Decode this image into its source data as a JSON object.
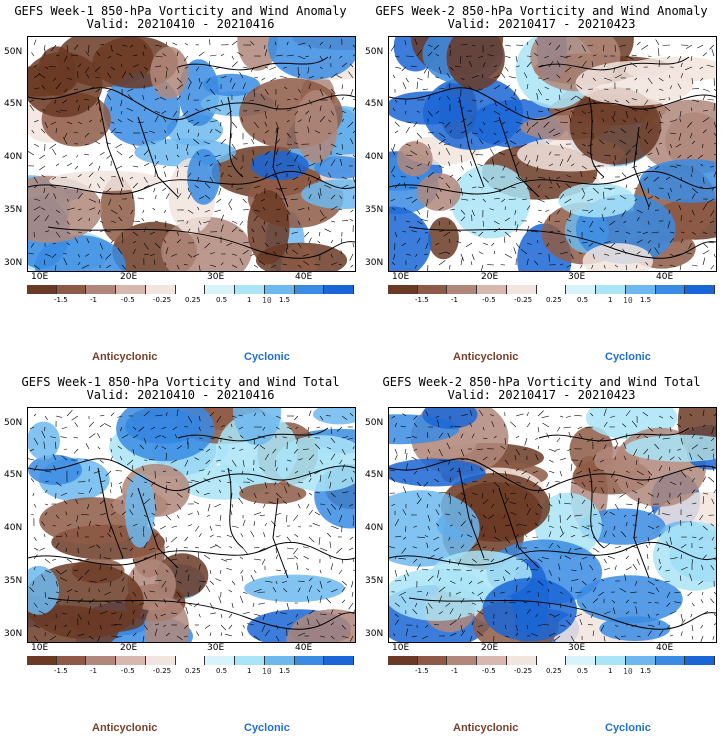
{
  "panels": [
    {
      "title": "GEFS Week-1 850-hPa Vorticity and Wind Anomaly",
      "valid": "Valid: 20210410 - 20210416"
    },
    {
      "title": "GEFS Week-2 850-hPa Vorticity and Wind Anomaly",
      "valid": "Valid: 20210417 - 20210423"
    },
    {
      "title": "GEFS Week-1 850-hPa Vorticity and Wind Total",
      "valid": "Valid: 20210410 - 20210416"
    },
    {
      "title": "GEFS Week-2 850-hPa Vorticity and Wind Total",
      "valid": "Valid: 20210417 - 20210423"
    }
  ],
  "lat_labels": [
    "50N",
    "45N",
    "40N",
    "35N",
    "30N"
  ],
  "lon_labels": [
    "10E",
    "20E",
    "30E",
    "40E"
  ],
  "colorbar": {
    "ticks": [
      "-1.5",
      "-1",
      "-0.5",
      "-0.25",
      "0.25",
      "0.5",
      "1",
      "1.5"
    ],
    "ref_vector": "10",
    "colors": [
      "#6b3a24",
      "#8e5a45",
      "#b0877a",
      "#d7b8ae",
      "#f2e4de",
      "#ffffff",
      "#d9f3fb",
      "#a9e4f7",
      "#6db8ee",
      "#3a8be3",
      "#1a66d6"
    ]
  },
  "legend": {
    "anticyclonic": "Anticyclonic",
    "cyclonic": "Cyclonic"
  },
  "colors": {
    "anticyclonic": "#7a3f28",
    "cyclonic": "#1e6fd9",
    "brown": "#9a6a55",
    "blue": "#3c8fe6"
  }
}
